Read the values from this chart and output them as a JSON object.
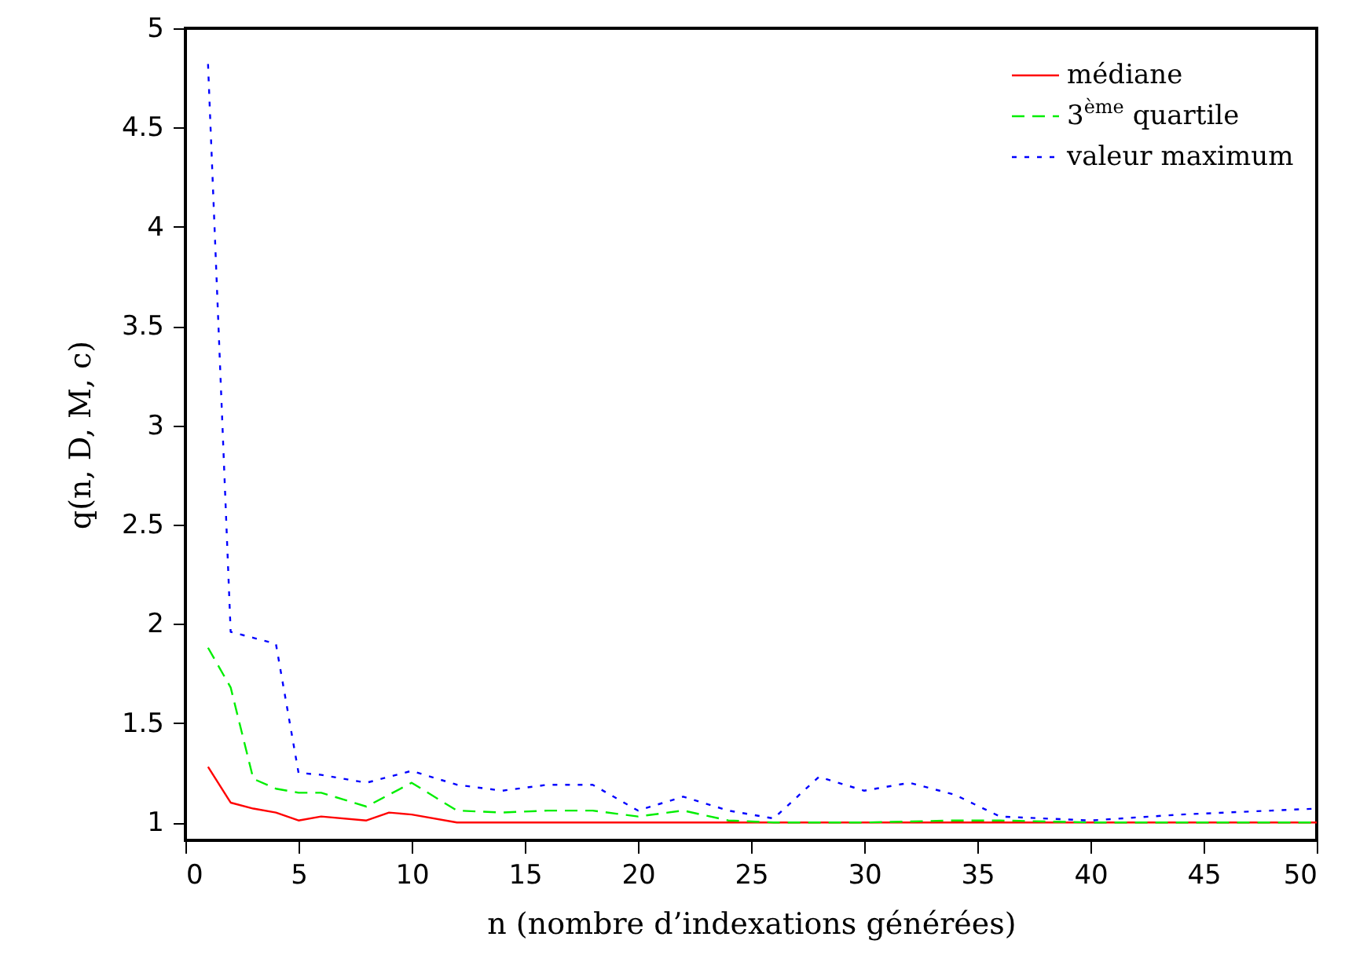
{
  "chart_data": {
    "type": "line",
    "xlabel": "n (nombre d’indexations générées)",
    "ylabel": "q(n, D, M, c)",
    "xlim": [
      0,
      50
    ],
    "xticks": [
      0,
      5,
      10,
      15,
      20,
      25,
      30,
      35,
      40,
      45,
      50
    ],
    "ylim": [
      0.91,
      5
    ],
    "yticks": [
      1,
      1.5,
      2,
      2.5,
      3,
      3.5,
      4,
      4.5,
      5
    ],
    "grid": false,
    "legend": "top right",
    "series": [
      {
        "name": "médiane",
        "color": "#ff0000",
        "line_style": "solid",
        "x": [
          1,
          2,
          3,
          4,
          5,
          6,
          8,
          9,
          10,
          12,
          20,
          30,
          40,
          50
        ],
        "values": [
          1.28,
          1.1,
          1.07,
          1.05,
          1.01,
          1.03,
          1.01,
          1.05,
          1.04,
          1.0,
          1.0,
          1.0,
          1.0,
          1.0
        ]
      },
      {
        "name": "3$^{ème}$ quartile",
        "color": "#00ee00",
        "line_style": "dashed",
        "x": [
          1,
          2,
          3,
          4,
          5,
          6,
          8,
          10,
          12,
          14,
          16,
          18,
          20,
          22,
          24,
          26,
          30,
          34,
          36,
          40,
          50
        ],
        "values": [
          1.88,
          1.68,
          1.22,
          1.17,
          1.15,
          1.15,
          1.08,
          1.2,
          1.06,
          1.05,
          1.06,
          1.06,
          1.03,
          1.06,
          1.01,
          1.0,
          1.0,
          1.01,
          1.01,
          1.0,
          1.0
        ]
      },
      {
        "name": "valeur maximum",
        "color": "#0000ff",
        "line_style": "dotted",
        "x": [
          1,
          2,
          3,
          4,
          5,
          6,
          8,
          10,
          12,
          14,
          16,
          18,
          20,
          22,
          24,
          26,
          28,
          30,
          32,
          34,
          36,
          40,
          44,
          48,
          50
        ],
        "values": [
          4.82,
          1.96,
          1.93,
          1.9,
          1.25,
          1.24,
          1.2,
          1.26,
          1.19,
          1.16,
          1.19,
          1.19,
          1.06,
          1.13,
          1.06,
          1.02,
          1.23,
          1.16,
          1.2,
          1.14,
          1.03,
          1.01,
          1.04,
          1.06,
          1.07
        ]
      }
    ]
  }
}
